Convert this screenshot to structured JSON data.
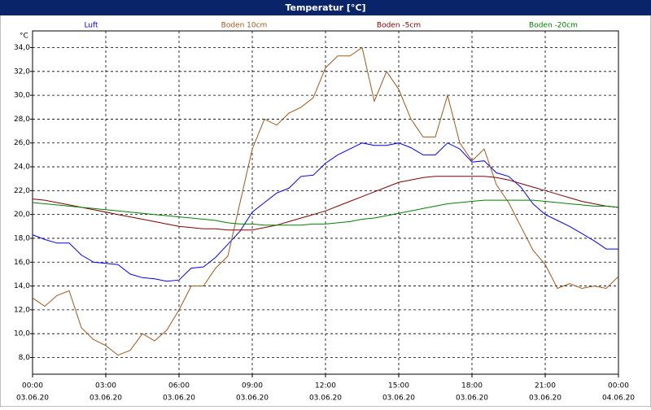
{
  "chart_data": {
    "type": "line",
    "title": "Temperatur [°C]",
    "y_unit": "°C",
    "x": [
      0,
      0.5,
      1,
      1.5,
      2,
      2.5,
      3,
      3.5,
      4,
      4.5,
      5,
      5.5,
      6,
      6.5,
      7,
      7.5,
      8,
      8.5,
      9,
      9.5,
      10,
      10.5,
      11,
      11.5,
      12,
      12.5,
      13,
      13.5,
      14,
      14.5,
      15,
      15.5,
      16,
      16.5,
      17,
      17.5,
      18,
      18.5,
      19,
      19.5,
      20,
      20.5,
      21,
      21.5,
      22,
      22.5,
      23,
      23.5,
      24
    ],
    "xlim": [
      0,
      24
    ],
    "xticks": [
      {
        "value": 0,
        "label": "00:00"
      },
      {
        "value": 3,
        "label": "03:00"
      },
      {
        "value": 6,
        "label": "06:00"
      },
      {
        "value": 9,
        "label": "09:00"
      },
      {
        "value": 12,
        "label": "12:00"
      },
      {
        "value": 15,
        "label": "15:00"
      },
      {
        "value": 18,
        "label": "18:00"
      },
      {
        "value": 21,
        "label": "21:00"
      },
      {
        "value": 24,
        "label": "00:00"
      }
    ],
    "xtick_dates": [
      "03.06.20",
      "03.06.20",
      "03.06.20",
      "03.06.20",
      "03.06.20",
      "03.06.20",
      "03.06.20",
      "03.06.20",
      "04.06.20"
    ],
    "ylim": [
      6.6,
      35.4
    ],
    "yticks": [
      {
        "value": 8,
        "label": "8,0"
      },
      {
        "value": 10,
        "label": "10,0"
      },
      {
        "value": 12,
        "label": "12,0"
      },
      {
        "value": 14,
        "label": "14,0"
      },
      {
        "value": 16,
        "label": "16,0"
      },
      {
        "value": 18,
        "label": "18,0"
      },
      {
        "value": 20,
        "label": "20,0"
      },
      {
        "value": 22,
        "label": "22,0"
      },
      {
        "value": 24,
        "label": "24,0"
      },
      {
        "value": 26,
        "label": "26,0"
      },
      {
        "value": 28,
        "label": "28,0"
      },
      {
        "value": 30,
        "label": "30,0"
      },
      {
        "value": 32,
        "label": "32,0"
      },
      {
        "value": 34,
        "label": "34,0"
      }
    ],
    "grid": true,
    "series": [
      {
        "name": "Luft",
        "color": "#0000ff",
        "values": [
          18.3,
          17.9,
          17.6,
          17.6,
          16.6,
          16.0,
          15.9,
          15.8,
          15.0,
          14.7,
          14.6,
          14.4,
          14.5,
          15.5,
          15.6,
          16.4,
          17.5,
          18.6,
          20.2,
          21.0,
          21.8,
          22.2,
          23.2,
          23.3,
          24.3,
          25.0,
          25.5,
          26.0,
          25.8,
          25.8,
          26.0,
          25.6,
          25.0,
          25.0,
          26.0,
          25.5,
          24.4,
          24.5,
          23.5,
          23.2,
          22.3,
          20.9,
          20.0,
          19.5,
          19.0,
          18.4,
          17.8,
          17.1,
          17.1
        ]
      },
      {
        "name": "Boden 10cm",
        "color": "#a0581c",
        "values": [
          13.0,
          12.3,
          13.2,
          13.6,
          10.5,
          9.5,
          9.0,
          8.2,
          8.6,
          10.0,
          9.4,
          10.3,
          12.0,
          14.0,
          14.0,
          15.5,
          16.5,
          21.0,
          25.5,
          28.0,
          27.5,
          28.5,
          29.0,
          29.8,
          32.3,
          33.3,
          33.3,
          34.0,
          29.5,
          32.0,
          30.5,
          28.0,
          26.5,
          26.5,
          30.0,
          26.0,
          24.5,
          25.5,
          22.5,
          21.0,
          19.0,
          17.0,
          15.8,
          13.8,
          14.2,
          13.8,
          14.0,
          13.8,
          14.8
        ]
      },
      {
        "name": "Boden -5cm",
        "color": "#800000",
        "values": [
          21.3,
          21.2,
          21.0,
          20.8,
          20.6,
          20.4,
          20.2,
          20.0,
          19.8,
          19.6,
          19.4,
          19.2,
          19.0,
          18.9,
          18.8,
          18.8,
          18.7,
          18.7,
          18.7,
          18.9,
          19.1,
          19.4,
          19.7,
          20.0,
          20.3,
          20.7,
          21.1,
          21.5,
          21.9,
          22.3,
          22.7,
          22.9,
          23.1,
          23.2,
          23.2,
          23.2,
          23.2,
          23.2,
          23.1,
          22.9,
          22.6,
          22.3,
          22.0,
          21.7,
          21.4,
          21.1,
          20.9,
          20.7,
          20.6
        ]
      },
      {
        "name": "Boden -20cm",
        "color": "#008000",
        "values": [
          21.0,
          20.9,
          20.8,
          20.7,
          20.6,
          20.5,
          20.4,
          20.3,
          20.2,
          20.1,
          20.0,
          19.9,
          19.8,
          19.7,
          19.6,
          19.5,
          19.3,
          19.2,
          19.2,
          19.1,
          19.1,
          19.1,
          19.1,
          19.2,
          19.2,
          19.3,
          19.4,
          19.6,
          19.7,
          19.9,
          20.1,
          20.3,
          20.5,
          20.7,
          20.9,
          21.0,
          21.1,
          21.2,
          21.2,
          21.2,
          21.2,
          21.2,
          21.1,
          21.0,
          20.9,
          20.8,
          20.7,
          20.7,
          20.6
        ]
      }
    ]
  }
}
